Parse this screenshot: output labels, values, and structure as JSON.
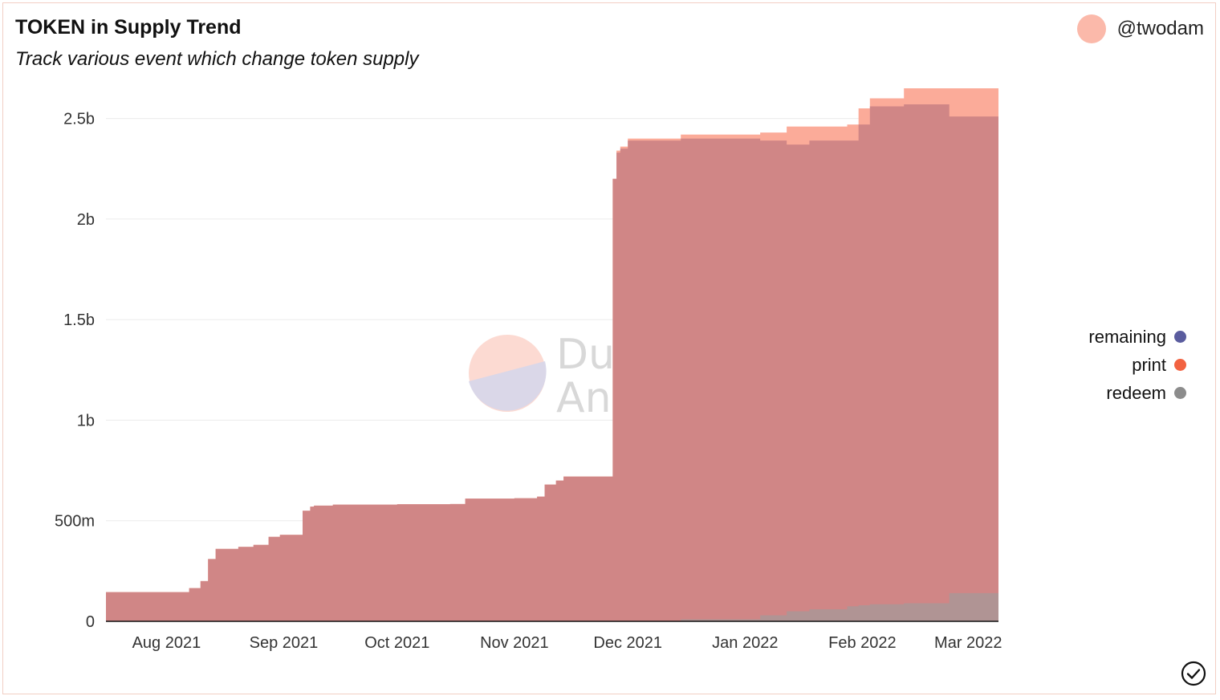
{
  "header": {
    "title": "TOKEN in Supply Trend",
    "subtitle": "Track various event which change token supply",
    "author": "@twodam"
  },
  "watermark": {
    "line1": "Dune",
    "line2": "Analytics"
  },
  "colors": {
    "print": "#fbab99",
    "remaining": "#d08686",
    "redeem": "#b09494",
    "legend_remaining": "#5a5c9e",
    "legend_print": "#f26241",
    "legend_redeem": "#8c8c8c",
    "grid": "#ececec",
    "axis": "#111111"
  },
  "chart_data": {
    "type": "area",
    "title": "TOKEN in Supply Trend",
    "subtitle": "Track various event which change token supply",
    "xlabel": "",
    "ylabel": "",
    "xlim": [
      "2021-07-16",
      "2022-03-09"
    ],
    "ylim": [
      0,
      2650000000
    ],
    "grid": true,
    "legend_position": "right",
    "x_tick_labels": [
      "Aug 2021",
      "Sep 2021",
      "Oct 2021",
      "Nov 2021",
      "Dec 2021",
      "Jan 2022",
      "Feb 2022",
      "Mar 2022"
    ],
    "x_tick_dates": [
      "2021-08-01",
      "2021-09-01",
      "2021-10-01",
      "2021-11-01",
      "2021-12-01",
      "2022-01-01",
      "2022-02-01",
      "2022-03-01"
    ],
    "y_ticks": [
      0,
      500000000,
      1000000000,
      1500000000,
      2000000000,
      2500000000
    ],
    "y_tick_labels": [
      "0",
      "500m",
      "1b",
      "1.5b",
      "2b",
      "2.5b"
    ],
    "legend": [
      "remaining",
      "print",
      "redeem"
    ],
    "x": [
      "2021-07-16",
      "2021-08-07",
      "2021-08-10",
      "2021-08-12",
      "2021-08-14",
      "2021-08-20",
      "2021-08-24",
      "2021-08-28",
      "2021-08-31",
      "2021-09-06",
      "2021-09-08",
      "2021-09-09",
      "2021-09-12",
      "2021-09-14",
      "2021-10-01",
      "2021-10-15",
      "2021-10-19",
      "2021-11-01",
      "2021-11-07",
      "2021-11-09",
      "2021-11-12",
      "2021-11-14",
      "2021-11-27",
      "2021-11-28",
      "2021-11-29",
      "2021-12-01",
      "2021-12-15",
      "2022-01-05",
      "2022-01-12",
      "2022-01-18",
      "2022-01-28",
      "2022-01-31",
      "2022-02-03",
      "2022-02-12",
      "2022-02-24",
      "2022-03-09"
    ],
    "series": [
      {
        "name": "print",
        "values": [
          145000000,
          165000000,
          200000000,
          310000000,
          360000000,
          370000000,
          380000000,
          420000000,
          430000000,
          550000000,
          570000000,
          575000000,
          575000000,
          580000000,
          582000000,
          583000000,
          610000000,
          612000000,
          620000000,
          680000000,
          700000000,
          720000000,
          2200000000,
          2340000000,
          2360000000,
          2400000000,
          2420000000,
          2430000000,
          2460000000,
          2460000000,
          2470000000,
          2550000000,
          2600000000,
          2650000000,
          2650000000,
          2650000000
        ]
      },
      {
        "name": "remaining",
        "values": [
          145000000,
          165000000,
          200000000,
          310000000,
          360000000,
          370000000,
          380000000,
          420000000,
          430000000,
          550000000,
          570000000,
          575000000,
          575000000,
          580000000,
          582000000,
          583000000,
          610000000,
          612000000,
          620000000,
          680000000,
          700000000,
          720000000,
          2200000000,
          2330000000,
          2350000000,
          2390000000,
          2400000000,
          2390000000,
          2370000000,
          2390000000,
          2390000000,
          2470000000,
          2560000000,
          2570000000,
          2510000000,
          2510000000
        ]
      },
      {
        "name": "redeem",
        "values": [
          0,
          0,
          0,
          0,
          0,
          0,
          0,
          0,
          0,
          0,
          0,
          0,
          0,
          0,
          0,
          0,
          0,
          0,
          0,
          0,
          0,
          0,
          0,
          0,
          0,
          0,
          10000000,
          30000000,
          50000000,
          60000000,
          75000000,
          80000000,
          85000000,
          90000000,
          140000000,
          140000000
        ]
      }
    ]
  }
}
